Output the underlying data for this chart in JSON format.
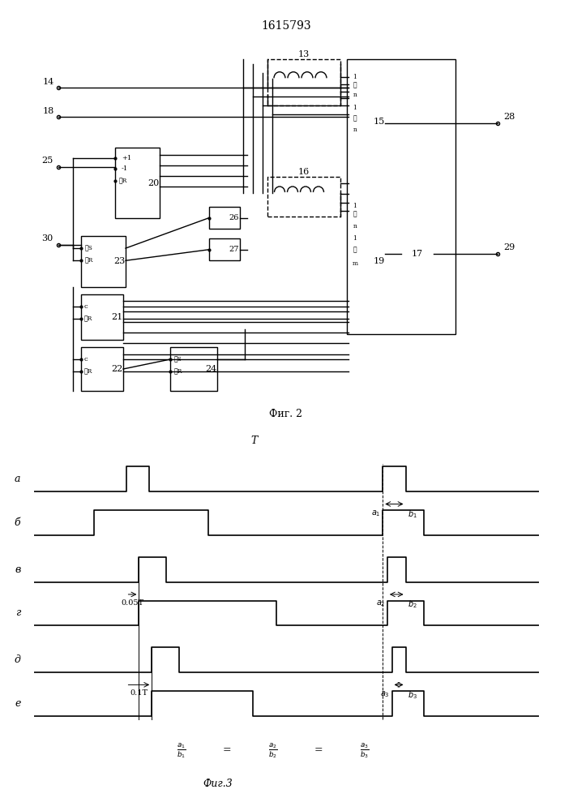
{
  "title": "1615793",
  "fig2_label": "Фиг. 2",
  "fig3_label": "Фиг.3",
  "bg_color": "#ffffff",
  "lc": "black",
  "signals": [
    "a",
    "б",
    "в",
    "г",
    "д",
    "е"
  ]
}
